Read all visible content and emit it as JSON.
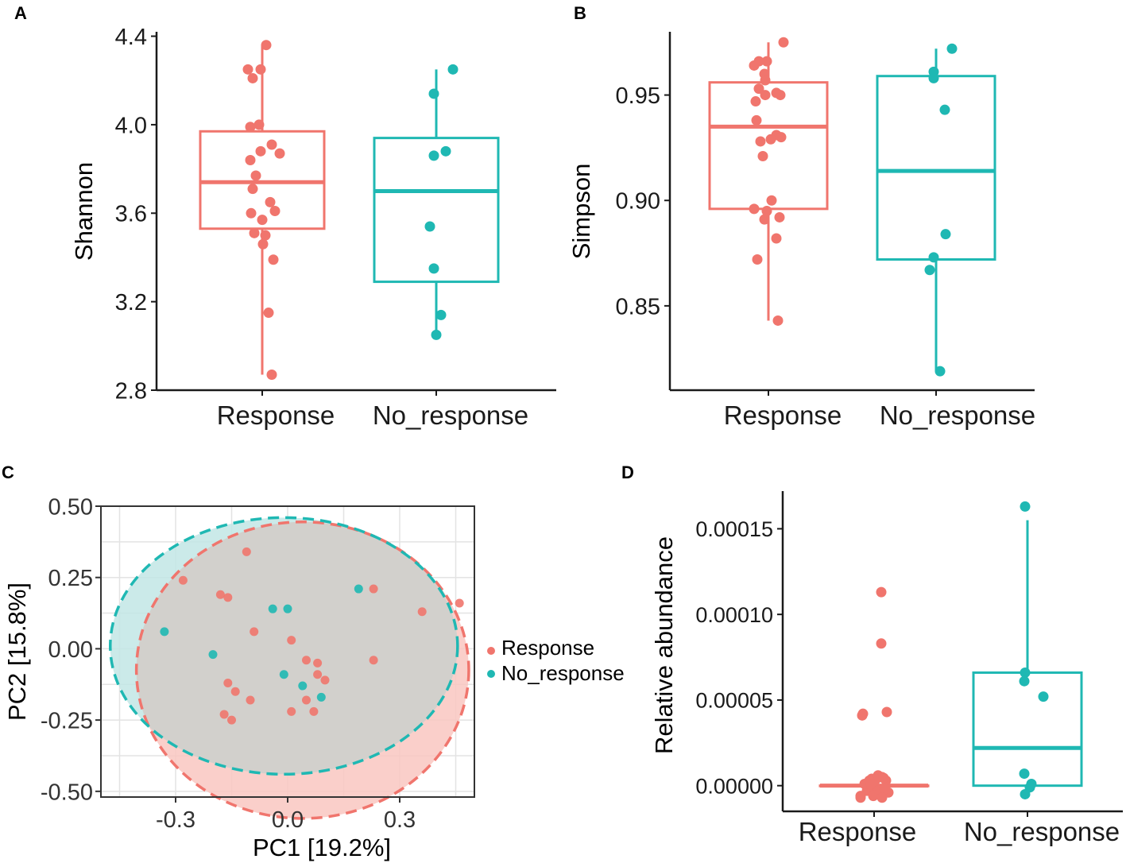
{
  "colors": {
    "response": "#F0756D",
    "no_response": "#1FB8B3",
    "axis": "#1a1a1a",
    "grid": "#e3e3e3",
    "overlap": "#d2d0cc"
  },
  "panel_labels": {
    "a": "A",
    "b": "B",
    "c": "C",
    "d": "D"
  },
  "chart_data": [
    {
      "id": "A",
      "type": "boxplot",
      "title": "",
      "xlabel": "",
      "ylabel": "Shannon",
      "ylim": [
        2.8,
        4.42
      ],
      "yticks": [
        2.8,
        3.2,
        3.6,
        4.0,
        4.4
      ],
      "ytick_labels": [
        "2.8",
        "3.2",
        "3.6",
        "4.0",
        "4.4"
      ],
      "categories": [
        "Response",
        "No_response"
      ],
      "boxes": [
        {
          "group": "Response",
          "whisker_low": 2.87,
          "q1": 3.53,
          "median": 3.74,
          "q3": 3.97,
          "whisker_high": 4.36
        },
        {
          "group": "No_response",
          "whisker_low": 3.04,
          "q1": 3.29,
          "median": 3.7,
          "q3": 3.94,
          "whisker_high": 4.25
        }
      ],
      "points": [
        {
          "group": "Response",
          "jitter": [
            0.05,
            -0.18,
            -0.02,
            -0.12,
            -0.15,
            0.12,
            -0.04,
            -0.02,
            -0.15,
            -0.12,
            -0.08,
            -0.14,
            0.1,
            0.0,
            -0.1,
            0.16,
            0.14,
            0.04,
            0.01,
            0.08,
            0.12,
            0.22
          ],
          "values": [
            4.36,
            4.25,
            4.25,
            4.21,
            3.99,
            3.91,
            4.0,
            3.88,
            3.84,
            3.71,
            3.77,
            3.6,
            3.65,
            3.57,
            3.51,
            3.61,
            3.39,
            3.5,
            3.46,
            3.15,
            2.87,
            3.87
          ]
        },
        {
          "group": "No_response",
          "jitter": [
            0.21,
            -0.03,
            0.12,
            -0.03,
            -0.08,
            -0.03,
            0.06,
            0.0
          ],
          "values": [
            4.25,
            4.14,
            3.88,
            3.86,
            3.54,
            3.35,
            3.14,
            3.05
          ]
        }
      ]
    },
    {
      "id": "B",
      "type": "boxplot",
      "title": "",
      "xlabel": "",
      "ylabel": "Simpson",
      "ylim": [
        0.81,
        0.98
      ],
      "yticks": [
        0.85,
        0.9,
        0.95
      ],
      "ytick_labels": [
        "0.85",
        "0.90",
        "0.95"
      ],
      "categories": [
        "Response",
        "No_response"
      ],
      "boxes": [
        {
          "group": "Response",
          "whisker_low": 0.843,
          "q1": 0.896,
          "median": 0.935,
          "q3": 0.956,
          "whisker_high": 0.975
        },
        {
          "group": "No_response",
          "whisker_low": 0.819,
          "q1": 0.872,
          "median": 0.914,
          "q3": 0.959,
          "whisker_high": 0.972
        }
      ],
      "points": [
        {
          "group": "Response",
          "jitter": [
            0.19,
            -0.02,
            -0.12,
            -0.18,
            -0.05,
            -0.12,
            -0.04,
            -0.04,
            -0.16,
            0.1,
            0.15,
            -0.15,
            0.1,
            -0.1,
            -0.07,
            0.16,
            0.04,
            -0.02,
            -0.05,
            0.14,
            0.1,
            -0.14,
            0.12,
            0.03,
            -0.18
          ],
          "values": [
            0.975,
            0.966,
            0.966,
            0.964,
            0.96,
            0.953,
            0.957,
            0.95,
            0.947,
            0.951,
            0.95,
            0.938,
            0.931,
            0.928,
            0.921,
            0.93,
            0.9,
            0.895,
            0.891,
            0.892,
            0.882,
            0.872,
            0.843,
            0.929,
            0.896
          ]
        },
        {
          "group": "No_response",
          "jitter": [
            0.2,
            -0.03,
            -0.03,
            0.11,
            0.12,
            -0.03,
            -0.08,
            0.05
          ],
          "values": [
            0.972,
            0.961,
            0.958,
            0.943,
            0.884,
            0.873,
            0.867,
            0.819
          ]
        }
      ]
    },
    {
      "id": "C",
      "type": "scatter",
      "title": "",
      "xlabel": "PC1 [19.2%]",
      "ylabel": "PC2   [15.8%]",
      "xlim": [
        -0.5,
        0.5
      ],
      "ylim": [
        -0.52,
        0.5
      ],
      "xticks": [
        -0.3,
        0.0,
        0.3
      ],
      "xtick_labels": [
        "-0.3",
        "0.0",
        "0.3"
      ],
      "yticks": [
        -0.5,
        -0.25,
        0.0,
        0.25,
        0.5
      ],
      "ytick_labels": [
        "-0.50",
        "-0.25",
        "0.00",
        "0.25",
        "0.50"
      ],
      "grid": true,
      "legend": {
        "position": "right",
        "entries": [
          {
            "label": "Response",
            "group": "Response"
          },
          {
            "label": "No_response",
            "group": "No_response"
          }
        ]
      },
      "ellipses": [
        {
          "group": "Response",
          "center": [
            0.04,
            -0.075
          ],
          "semi_axis_x": 0.445,
          "semi_axis_y": 0.52
        },
        {
          "group": "No_response",
          "center": [
            -0.01,
            0.01
          ],
          "semi_axis_x": 0.465,
          "semi_axis_y": 0.45
        }
      ],
      "series": [
        {
          "name": "Response",
          "x": [
            -0.11,
            -0.28,
            -0.18,
            -0.16,
            -0.09,
            -0.16,
            -0.14,
            -0.17,
            -0.1,
            -0.15,
            0.23,
            0.36,
            0.46,
            0.23,
            0.08,
            0.05,
            0.08,
            0.1,
            0.01,
            0.05,
            0.07,
            0.01
          ],
          "y": [
            0.34,
            0.24,
            0.19,
            0.18,
            0.06,
            -0.12,
            -0.15,
            -0.23,
            -0.18,
            -0.25,
            0.21,
            0.13,
            0.16,
            -0.04,
            -0.05,
            -0.04,
            -0.09,
            -0.11,
            -0.22,
            -0.18,
            -0.22,
            0.03
          ]
        },
        {
          "name": "No_response",
          "x": [
            -0.33,
            -0.2,
            -0.04,
            0.0,
            0.19,
            -0.01,
            0.04,
            0.09
          ],
          "y": [
            0.06,
            -0.02,
            0.14,
            0.14,
            0.21,
            -0.09,
            -0.13,
            -0.17
          ]
        }
      ]
    },
    {
      "id": "D",
      "type": "boxplot",
      "title": "",
      "xlabel": "",
      "ylabel": "Relative abundance",
      "ylim": [
        -1.5e-05,
        0.000172
      ],
      "yticks": [
        0.0,
        5e-05,
        0.0001,
        0.00015
      ],
      "ytick_labels": [
        "0.00000",
        "0.00005",
        "0.00010",
        "0.00015"
      ],
      "categories": [
        "Response",
        "No_response"
      ],
      "boxes": [
        {
          "group": "Response",
          "whisker_low": 0.0,
          "q1": 0.0,
          "median": 0.0,
          "q3": 0.0,
          "whisker_high": 0.0
        },
        {
          "group": "No_response",
          "whisker_low": 0.0,
          "q1": 0.0,
          "median": 2.2e-05,
          "q3": 6.6e-05,
          "whisker_high": 0.000155
        }
      ],
      "points": [
        {
          "group": "Response",
          "jitter": [
            0.09,
            0.09,
            -0.15,
            -0.14,
            0.16,
            -0.17,
            0.05,
            0.1,
            0.15,
            -0.03,
            0.02,
            0.12,
            -0.06,
            0.03,
            -0.09,
            0.07,
            -0.01,
            0.18,
            -0.12,
            -0.04,
            0.05,
            0.13,
            0.0,
            -0.17,
            0.1
          ],
          "values": [
            0.000113,
            8.3e-05,
            4.1e-05,
            4.2e-05,
            4.3e-05,
            -6e-06,
            6e-06,
            5e-06,
            3e-06,
            4e-06,
            3.5e-06,
            4.5e-06,
            3e-06,
            -2e-06,
            -3e-06,
            -4e-06,
            -6e-06,
            -4e-06,
            1e-06,
            1e-06,
            -3e-06,
            -2e-06,
            -5.5e-06,
            -7e-06,
            -7e-06
          ]
        },
        {
          "group": "No_response",
          "jitter": [
            -0.03,
            -0.03,
            -0.04,
            0.2,
            -0.04,
            0.05,
            0.03,
            -0.03
          ],
          "values": [
            0.000163,
            6.6e-05,
            6.1e-05,
            5.2e-05,
            7e-06,
            1e-06,
            -1e-06,
            -5e-06
          ]
        }
      ]
    }
  ]
}
